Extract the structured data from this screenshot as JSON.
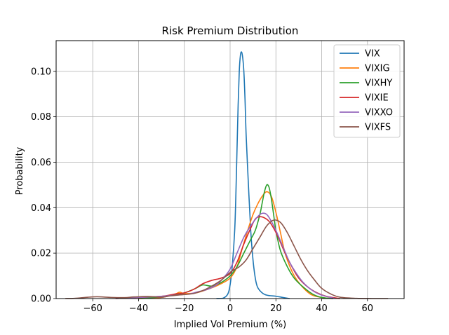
{
  "chart_data": {
    "type": "line",
    "title": "Risk Premium Distribution",
    "xlabel": "Implied Vol Premium (%)",
    "ylabel": "Probability",
    "xlim": [
      -76,
      76
    ],
    "ylim": [
      0,
      0.1135
    ],
    "xticks": [
      -60,
      -40,
      -20,
      0,
      20,
      40,
      60
    ],
    "yticks": [
      0.0,
      0.02,
      0.04,
      0.06,
      0.08,
      0.1
    ],
    "xtick_labels": [
      "−60",
      "−40",
      "−20",
      "0",
      "20",
      "40",
      "60"
    ],
    "ytick_labels": [
      "0.00",
      "0.02",
      "0.04",
      "0.06",
      "0.08",
      "0.10"
    ],
    "grid": true,
    "legend_position": "top-right",
    "series": [
      {
        "name": "VIX",
        "color": "#1f77b4",
        "points": [
          [
            -6,
            0
          ],
          [
            -3,
            0.0002
          ],
          [
            -1,
            0.002
          ],
          [
            0,
            0.006
          ],
          [
            1,
            0.015
          ],
          [
            2,
            0.03
          ],
          [
            2.5,
            0.045
          ],
          [
            3,
            0.065
          ],
          [
            3.5,
            0.085
          ],
          [
            4,
            0.1
          ],
          [
            4.5,
            0.107
          ],
          [
            5,
            0.1085
          ],
          [
            5.5,
            0.106
          ],
          [
            6,
            0.1
          ],
          [
            6.5,
            0.088
          ],
          [
            7,
            0.072
          ],
          [
            8,
            0.05
          ],
          [
            9,
            0.03
          ],
          [
            10,
            0.017
          ],
          [
            11,
            0.009
          ],
          [
            12,
            0.005
          ],
          [
            14,
            0.0025
          ],
          [
            16,
            0.0015
          ],
          [
            20,
            0.001
          ],
          [
            23,
            0.0005
          ],
          [
            26,
            0
          ]
        ]
      },
      {
        "name": "VIXIG",
        "color": "#ff7f0e",
        "points": [
          [
            -40,
            0
          ],
          [
            -30,
            0.0005
          ],
          [
            -24,
            0.002
          ],
          [
            -22,
            0.0028
          ],
          [
            -20,
            0.0022
          ],
          [
            -15,
            0.0025
          ],
          [
            -10,
            0.004
          ],
          [
            -5,
            0.006
          ],
          [
            0,
            0.009
          ],
          [
            3,
            0.014
          ],
          [
            5,
            0.021
          ],
          [
            8,
            0.031
          ],
          [
            10,
            0.037
          ],
          [
            12,
            0.0415
          ],
          [
            14,
            0.045
          ],
          [
            16,
            0.047
          ],
          [
            18,
            0.045
          ],
          [
            20,
            0.038
          ],
          [
            22,
            0.029
          ],
          [
            24,
            0.02
          ],
          [
            27,
            0.012
          ],
          [
            30,
            0.007
          ],
          [
            35,
            0.002
          ],
          [
            40,
            0.0005
          ],
          [
            45,
            0
          ]
        ]
      },
      {
        "name": "VIXHY",
        "color": "#2ca02c",
        "points": [
          [
            -40,
            0
          ],
          [
            -30,
            0.0008
          ],
          [
            -25,
            0.0015
          ],
          [
            -20,
            0.0025
          ],
          [
            -15,
            0.0045
          ],
          [
            -12,
            0.006
          ],
          [
            -8,
            0.0055
          ],
          [
            -4,
            0.007
          ],
          [
            0,
            0.01
          ],
          [
            3,
            0.014
          ],
          [
            6,
            0.02
          ],
          [
            9,
            0.026
          ],
          [
            11,
            0.03
          ],
          [
            13,
            0.037
          ],
          [
            14,
            0.042
          ],
          [
            15,
            0.047
          ],
          [
            16,
            0.05
          ],
          [
            17,
            0.049
          ],
          [
            18,
            0.044
          ],
          [
            19,
            0.037
          ],
          [
            20,
            0.03
          ],
          [
            22,
            0.021
          ],
          [
            25,
            0.014
          ],
          [
            28,
            0.009
          ],
          [
            32,
            0.005
          ],
          [
            36,
            0.002
          ],
          [
            40,
            0.0005
          ],
          [
            45,
            0
          ]
        ]
      },
      {
        "name": "VIXIE",
        "color": "#d62728",
        "points": [
          [
            -50,
            0
          ],
          [
            -40,
            0.0005
          ],
          [
            -30,
            0.001
          ],
          [
            -24,
            0.002
          ],
          [
            -20,
            0.0025
          ],
          [
            -16,
            0.004
          ],
          [
            -12,
            0.0065
          ],
          [
            -8,
            0.008
          ],
          [
            -4,
            0.009
          ],
          [
            0,
            0.011
          ],
          [
            3,
            0.016
          ],
          [
            6,
            0.024
          ],
          [
            9,
            0.031
          ],
          [
            11,
            0.035
          ],
          [
            13,
            0.036
          ],
          [
            15,
            0.0355
          ],
          [
            17,
            0.034
          ],
          [
            19,
            0.031
          ],
          [
            21,
            0.027
          ],
          [
            24,
            0.02
          ],
          [
            27,
            0.014
          ],
          [
            30,
            0.009
          ],
          [
            34,
            0.005
          ],
          [
            38,
            0.0025
          ],
          [
            42,
            0.001
          ],
          [
            48,
            0
          ]
        ]
      },
      {
        "name": "VIXXO",
        "color": "#9467bd",
        "points": [
          [
            -50,
            0
          ],
          [
            -40,
            0.0005
          ],
          [
            -30,
            0.001
          ],
          [
            -24,
            0.0015
          ],
          [
            -18,
            0.002
          ],
          [
            -14,
            0.003
          ],
          [
            -10,
            0.004
          ],
          [
            -6,
            0.006
          ],
          [
            -3,
            0.009
          ],
          [
            0,
            0.013
          ],
          [
            3,
            0.02
          ],
          [
            6,
            0.027
          ],
          [
            9,
            0.032
          ],
          [
            12,
            0.036
          ],
          [
            14,
            0.0375
          ],
          [
            16,
            0.037
          ],
          [
            18,
            0.034
          ],
          [
            20,
            0.03
          ],
          [
            23,
            0.023
          ],
          [
            26,
            0.016
          ],
          [
            29,
            0.011
          ],
          [
            32,
            0.007
          ],
          [
            36,
            0.0035
          ],
          [
            40,
            0.0015
          ],
          [
            46,
            0
          ]
        ]
      },
      {
        "name": "VIXFS",
        "color": "#8c564b",
        "points": [
          [
            -72,
            0
          ],
          [
            -68,
            0.0001
          ],
          [
            -62,
            0.0006
          ],
          [
            -58,
            0.0008
          ],
          [
            -52,
            0.0005
          ],
          [
            -46,
            0.0004
          ],
          [
            -42,
            0.0007
          ],
          [
            -36,
            0.0009
          ],
          [
            -30,
            0.0006
          ],
          [
            -26,
            0.0012
          ],
          [
            -20,
            0.0018
          ],
          [
            -16,
            0.0022
          ],
          [
            -12,
            0.0035
          ],
          [
            -8,
            0.0055
          ],
          [
            -4,
            0.008
          ],
          [
            0,
            0.0115
          ],
          [
            4,
            0.014
          ],
          [
            7,
            0.017
          ],
          [
            10,
            0.022
          ],
          [
            13,
            0.027
          ],
          [
            16,
            0.032
          ],
          [
            19,
            0.0345
          ],
          [
            22,
            0.0335
          ],
          [
            25,
            0.029
          ],
          [
            28,
            0.023
          ],
          [
            31,
            0.017
          ],
          [
            34,
            0.012
          ],
          [
            37,
            0.008
          ],
          [
            40,
            0.0045
          ],
          [
            44,
            0.002
          ],
          [
            48,
            0.0006
          ],
          [
            55,
            0.0001
          ],
          [
            62,
            0
          ],
          [
            69,
            0
          ]
        ]
      }
    ]
  }
}
